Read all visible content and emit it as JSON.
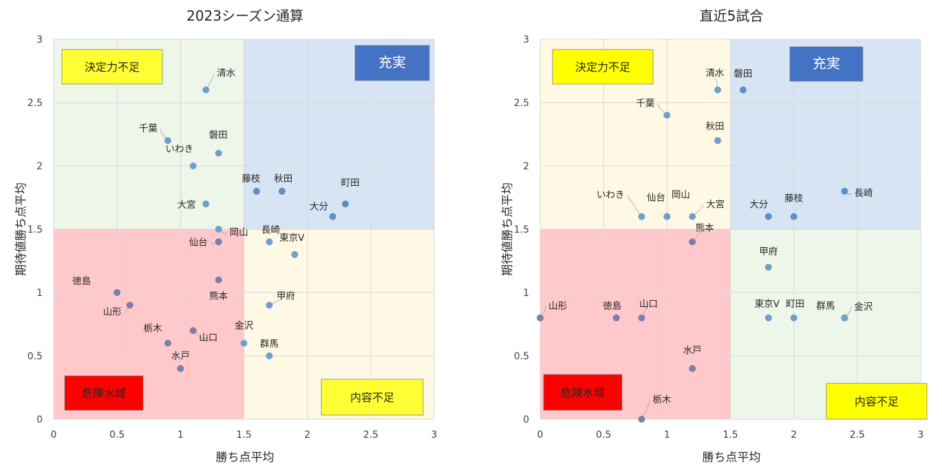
{
  "chart_data": [
    {
      "type": "scatter",
      "title": "2023シーズン通算",
      "xlabel": "勝ち点平均",
      "ylabel": "期待値勝ち点平均",
      "xlim": [
        0,
        3
      ],
      "ylim": [
        0,
        3
      ],
      "x_ticks": [
        "0",
        "0.5",
        "1",
        "1.5",
        "2",
        "2.5",
        "3"
      ],
      "y_ticks": [
        "0",
        "0.5",
        "1",
        "1.5",
        "2",
        "2.5",
        "3"
      ],
      "grid": true,
      "zones": [
        {
          "label": "決定力不足",
          "quadrant": "top-left",
          "fill": "#eef5e9",
          "label_bg": "#ffff33",
          "label_color": "#262626"
        },
        {
          "label": "充実",
          "quadrant": "top-right",
          "fill": "#d6e4f3",
          "label_bg": "#4472c4",
          "label_color": "#ffffff"
        },
        {
          "label": "危険水域",
          "quadrant": "bottom-left",
          "fill": "#ffc9cc",
          "label_bg": "#ff0000",
          "label_color": "#262626"
        },
        {
          "label": "内容不足",
          "quadrant": "bottom-right",
          "fill": "#fff8e4",
          "label_bg": "#ffff33",
          "label_color": "#262626"
        }
      ],
      "points": [
        {
          "name": "清水",
          "x": 1.2,
          "y": 2.6
        },
        {
          "name": "千葉",
          "x": 0.9,
          "y": 2.2
        },
        {
          "name": "磐田",
          "x": 1.3,
          "y": 2.1
        },
        {
          "name": "いわき",
          "x": 1.1,
          "y": 2.0
        },
        {
          "name": "藤枝",
          "x": 1.6,
          "y": 1.8
        },
        {
          "name": "秋田",
          "x": 1.8,
          "y": 1.8
        },
        {
          "name": "町田",
          "x": 2.3,
          "y": 1.7
        },
        {
          "name": "大宮",
          "x": 1.2,
          "y": 1.7
        },
        {
          "name": "大分",
          "x": 2.2,
          "y": 1.6
        },
        {
          "name": "岡山",
          "x": 1.3,
          "y": 1.5
        },
        {
          "name": "長崎",
          "x": 1.7,
          "y": 1.4
        },
        {
          "name": "仙台",
          "x": 1.3,
          "y": 1.4
        },
        {
          "name": "東京V",
          "x": 1.9,
          "y": 1.3
        },
        {
          "name": "熊本",
          "x": 1.3,
          "y": 1.1
        },
        {
          "name": "徳島",
          "x": 0.5,
          "y": 1.0
        },
        {
          "name": "山形",
          "x": 0.6,
          "y": 0.9
        },
        {
          "name": "甲府",
          "x": 1.7,
          "y": 0.9
        },
        {
          "name": "山口",
          "x": 1.1,
          "y": 0.7
        },
        {
          "name": "栃木",
          "x": 0.9,
          "y": 0.6
        },
        {
          "name": "金沢",
          "x": 1.5,
          "y": 0.6
        },
        {
          "name": "群馬",
          "x": 1.7,
          "y": 0.5
        },
        {
          "name": "水戸",
          "x": 1.0,
          "y": 0.4
        }
      ]
    },
    {
      "type": "scatter",
      "title": "直近5試合",
      "xlabel": "勝ち点平均",
      "ylabel": "期待値勝ち点平均",
      "xlim": [
        0,
        3
      ],
      "ylim": [
        0,
        3
      ],
      "x_ticks": [
        "0",
        "0.5",
        "1",
        "1.5",
        "2",
        "2.5",
        "3"
      ],
      "y_ticks": [
        "0",
        "0.5",
        "1",
        "1.5",
        "2",
        "2.5",
        "3"
      ],
      "grid": true,
      "zones": [
        {
          "label": "決定力不足",
          "quadrant": "top-left",
          "fill": "#fff8e4",
          "label_bg": "#ffff00",
          "label_color": "#262626"
        },
        {
          "label": "充実",
          "quadrant": "top-right",
          "fill": "#d6e4f3",
          "label_bg": "#4472c4",
          "label_color": "#ffffff"
        },
        {
          "label": "危険水域",
          "quadrant": "bottom-left",
          "fill": "#ffc9cc",
          "label_bg": "#ff0000",
          "label_color": "#262626"
        },
        {
          "label": "内容不足",
          "quadrant": "bottom-right",
          "fill": "#eef5e9",
          "label_bg": "#ffff00",
          "label_color": "#262626"
        }
      ],
      "points": [
        {
          "name": "清水",
          "x": 1.4,
          "y": 2.6
        },
        {
          "name": "磐田",
          "x": 1.6,
          "y": 2.6
        },
        {
          "name": "千葉",
          "x": 1.0,
          "y": 2.4
        },
        {
          "name": "秋田",
          "x": 1.4,
          "y": 2.2
        },
        {
          "name": "長崎",
          "x": 2.4,
          "y": 1.8
        },
        {
          "name": "いわき",
          "x": 0.8,
          "y": 1.6
        },
        {
          "name": "仙台",
          "x": 1.0,
          "y": 1.6
        },
        {
          "name": "岡山",
          "x": 1.0,
          "y": 1.6
        },
        {
          "name": "大宮",
          "x": 1.2,
          "y": 1.6
        },
        {
          "name": "大分",
          "x": 1.8,
          "y": 1.6
        },
        {
          "name": "藤枝",
          "x": 2.0,
          "y": 1.6
        },
        {
          "name": "熊本",
          "x": 1.2,
          "y": 1.4
        },
        {
          "name": "甲府",
          "x": 1.8,
          "y": 1.2
        },
        {
          "name": "山形",
          "x": 0.0,
          "y": 0.8
        },
        {
          "name": "徳島",
          "x": 0.6,
          "y": 0.8
        },
        {
          "name": "山口",
          "x": 0.8,
          "y": 0.8
        },
        {
          "name": "東京V",
          "x": 1.8,
          "y": 0.8
        },
        {
          "name": "町田",
          "x": 2.0,
          "y": 0.8
        },
        {
          "name": "群馬",
          "x": 2.4,
          "y": 0.8
        },
        {
          "name": "金沢",
          "x": 2.4,
          "y": 0.8
        },
        {
          "name": "水戸",
          "x": 1.2,
          "y": 0.4
        },
        {
          "name": "栃木",
          "x": 0.8,
          "y": 0.0
        }
      ]
    }
  ],
  "colors": {
    "point_light": "#6fa0cc",
    "point_mid": "#5b8fc8",
    "point_dark": "#7a7fa8",
    "grid": "#d9d9d9",
    "leader": "#a6a6a6"
  }
}
